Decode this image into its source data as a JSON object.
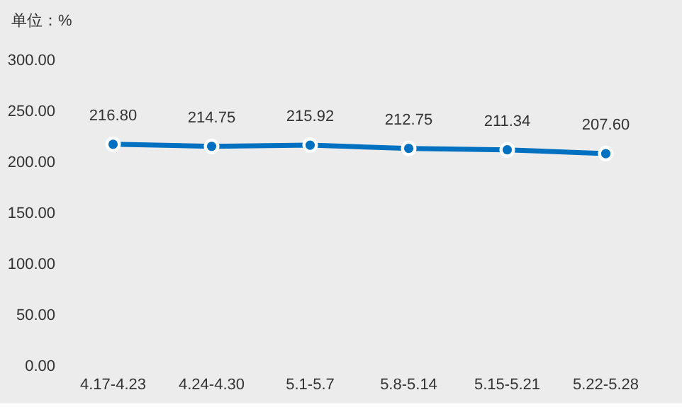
{
  "chart_data": {
    "type": "line",
    "ylabel": "单位：%",
    "categories": [
      "4.17-4.23",
      "4.24-4.30",
      "5.1-5.7",
      "5.8-5.14",
      "5.15-5.21",
      "5.22-5.28"
    ],
    "series": [
      {
        "color": "#0070c0",
        "values": [
          216.8,
          214.75,
          215.92,
          212.75,
          211.34,
          207.6
        ],
        "value_labels": [
          "216.80",
          "214.75",
          "215.92",
          "212.75",
          "211.34",
          "207.60"
        ]
      }
    ],
    "ylim": [
      0,
      300
    ],
    "yticks": [
      {
        "value": 0,
        "label": "0.00"
      },
      {
        "value": 50,
        "label": "50.00"
      },
      {
        "value": 100,
        "label": "100.00"
      },
      {
        "value": 150,
        "label": "150.00"
      },
      {
        "value": 200,
        "label": "200.00"
      },
      {
        "value": 250,
        "label": "250.00"
      },
      {
        "value": 300,
        "label": "300.00"
      }
    ],
    "marker": "circle",
    "grid": false
  }
}
